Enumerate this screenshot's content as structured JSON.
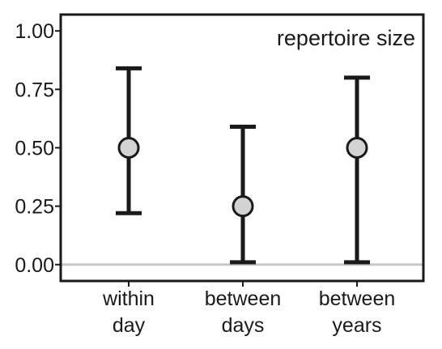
{
  "chart_data": {
    "type": "scatter",
    "title": "repertoire size",
    "xlabel": "",
    "ylabel": "",
    "categories": [
      [
        "within",
        "day"
      ],
      [
        "between",
        "days"
      ],
      [
        "between",
        "years"
      ]
    ],
    "series": [
      {
        "values": [
          0.5,
          0.25,
          0.5
        ],
        "lower": [
          0.22,
          0.01,
          0.01
        ],
        "upper": [
          0.84,
          0.59,
          0.8
        ]
      }
    ],
    "ylim": [
      -0.07,
      1.07
    ],
    "yticks": [
      0.0,
      0.25,
      0.5,
      0.75,
      1.0
    ],
    "ytick_labels": [
      "0.00",
      "0.25",
      "0.50",
      "0.75",
      "1.00"
    ],
    "reference_line": 0.0,
    "grid": false,
    "colors": {
      "marker_fill": "#d3d3d3",
      "marker_stroke": "#1a1a1a",
      "errorbar": "#1a1a1a",
      "reference_line": "#c8c8c8",
      "axis": "#1a1a1a",
      "text": "#1a1a1a"
    }
  }
}
